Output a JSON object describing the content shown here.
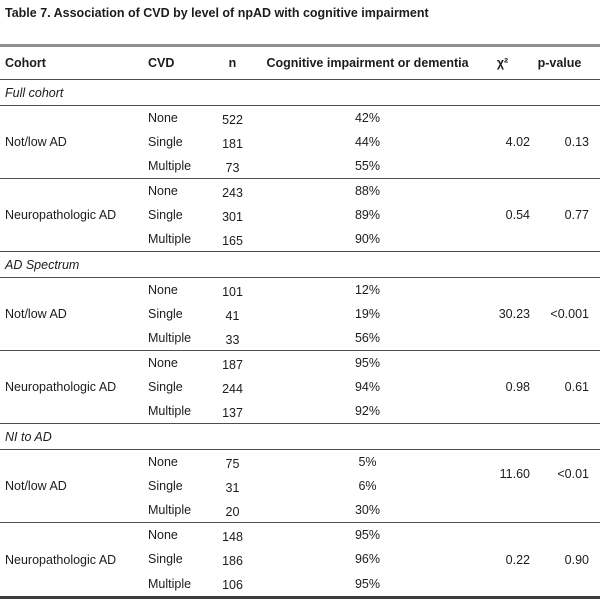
{
  "title": "Table 7. Association of CVD by level of npAD with cognitive impairment",
  "table": {
    "headers": {
      "cohort": "Cohort",
      "cvd": "CVD",
      "n": "n",
      "cognitive": "Cognitive impairment or dementia",
      "chi2": "χ²",
      "p": "p-value"
    },
    "sections": [
      {
        "label": "Full cohort",
        "groups": [
          {
            "cohort": "Not/low AD",
            "rows": [
              {
                "cvd": "None",
                "n": "522",
                "pct": "42%"
              },
              {
                "cvd": "Single",
                "n": "181",
                "pct": "44%"
              },
              {
                "cvd": "Multiple",
                "n": "73",
                "pct": "55%"
              }
            ],
            "chi2": "4.02",
            "p": "0.13"
          },
          {
            "cohort": "Neuropathologic AD",
            "rows": [
              {
                "cvd": "None",
                "n": "243",
                "pct": "88%"
              },
              {
                "cvd": "Single",
                "n": "301",
                "pct": "89%"
              },
              {
                "cvd": "Multiple",
                "n": "165",
                "pct": "90%"
              }
            ],
            "chi2": "0.54",
            "p": "0.77"
          }
        ]
      },
      {
        "label": "AD Spectrum",
        "groups": [
          {
            "cohort": "Not/low AD",
            "rows": [
              {
                "cvd": "None",
                "n": "101",
                "pct": "12%"
              },
              {
                "cvd": "Single",
                "n": "41",
                "pct": "19%"
              },
              {
                "cvd": "Multiple",
                "n": "33",
                "pct": "56%"
              }
            ],
            "chi2": "30.23",
            "p": "<0.001"
          },
          {
            "cohort": "Neuropathologic AD",
            "rows": [
              {
                "cvd": "None",
                "n": "187",
                "pct": "95%"
              },
              {
                "cvd": "Single",
                "n": "244",
                "pct": "94%"
              },
              {
                "cvd": "Multiple",
                "n": "137",
                "pct": "92%"
              }
            ],
            "chi2": "0.98",
            "p": "0.61"
          }
        ]
      },
      {
        "label": "NI to AD",
        "groups": [
          {
            "cohort": "Not/low AD",
            "rows": [
              {
                "cvd": "None",
                "n": "75",
                "pct": "5%"
              },
              {
                "cvd": "Single",
                "n": "31",
                "pct": "6%"
              },
              {
                "cvd": "Multiple",
                "n": "20",
                "pct": "30%"
              }
            ],
            "chi2": "11.60",
            "p": "<0.01"
          },
          {
            "cohort": "Neuropathologic AD",
            "rows": [
              {
                "cvd": "None",
                "n": "148",
                "pct": "95%"
              },
              {
                "cvd": "Single",
                "n": "186",
                "pct": "96%"
              },
              {
                "cvd": "Multiple",
                "n": "106",
                "pct": "95%"
              }
            ],
            "chi2": "0.22",
            "p": "0.90"
          }
        ]
      }
    ]
  }
}
